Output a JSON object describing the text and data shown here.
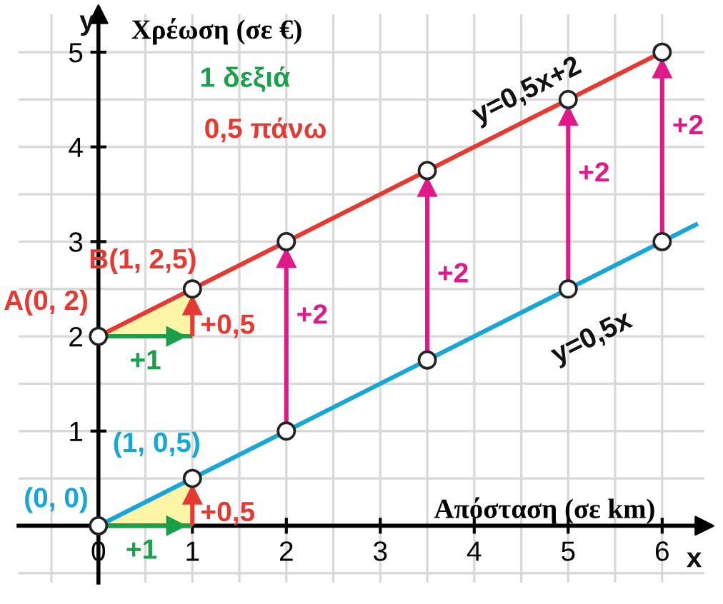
{
  "chart_data": {
    "type": "line",
    "xlabel": "Απόσταση (σε km)",
    "ylabel": "Χρέωση (σε €)",
    "xlim": [
      -0.85,
      6.45
    ],
    "ylim": [
      -0.6,
      5.4
    ],
    "xticks": [
      {
        "value": 0,
        "label": "0"
      },
      1,
      2,
      3,
      4,
      5,
      6,
      {
        "value": -0.5,
        "label": null
      },
      {
        "value": 0.5,
        "label": null
      },
      {
        "value": 1.5,
        "label": null
      },
      {
        "value": 2.5,
        "label": null
      },
      {
        "value": 3.5,
        "label": null
      },
      {
        "value": 4.5,
        "label": null
      },
      {
        "value": 5.5,
        "label": null
      }
    ],
    "yticks": [
      1,
      2,
      3,
      4,
      5,
      {
        "value": -0.5,
        "label": null
      },
      {
        "value": 0.5,
        "label": null
      },
      {
        "value": 1.5,
        "label": null
      },
      {
        "value": 2.5,
        "label": null
      },
      {
        "value": 3.5,
        "label": null
      },
      {
        "value": 4.5,
        "label": null
      }
    ],
    "grid": true,
    "series": [
      {
        "color": "#e53a32",
        "x": [
          0,
          1,
          2,
          3.5,
          5,
          6
        ],
        "values": [
          2,
          2.5,
          3,
          3.75,
          4.5,
          5
        ]
      },
      {
        "color": "#17a6d6",
        "x": [
          0,
          1,
          2,
          3.5,
          5,
          6,
          6.38
        ],
        "values": [
          0,
          0.5,
          1,
          1.75,
          2.5,
          3,
          3.19
        ]
      },
      {
        "color": "#1aa04b",
        "x": [
          0,
          1
        ],
        "values": [
          2,
          2
        ]
      },
      {
        "color": "#1aa04b",
        "x": [
          0,
          1
        ],
        "values": [
          0,
          0
        ]
      },
      {
        "color": "#e53a32",
        "x": [
          1,
          1
        ],
        "values": [
          2,
          2.5
        ]
      },
      {
        "color": "#e53a32",
        "x": [
          1,
          1
        ],
        "values": [
          0,
          0.5
        ]
      },
      {
        "color": "#e0198a",
        "x": [
          2,
          2
        ],
        "values": [
          1,
          3
        ]
      },
      {
        "color": "#e0198a",
        "x": [
          3.5,
          3.5
        ],
        "values": [
          1.75,
          3.75
        ]
      },
      {
        "color": "#e0198a",
        "x": [
          5,
          5
        ],
        "values": [
          2.5,
          4.5
        ]
      },
      {
        "color": "#e0198a",
        "x": [
          6,
          6
        ],
        "values": [
          3,
          5
        ]
      },
      {
        "type": "scatter",
        "color": "#ffffff",
        "x": [
          0,
          1,
          2,
          3.5,
          5,
          6
        ],
        "values": [
          2,
          2.5,
          3,
          3.75,
          4.5,
          5
        ]
      },
      {
        "type": "scatter",
        "color": "#ffffff",
        "x": [
          0,
          1,
          2,
          3.5,
          5,
          6
        ],
        "values": [
          0,
          0.5,
          1,
          1.75,
          2.5,
          3
        ]
      }
    ],
    "annotations": [
      "y",
      "x",
      "1 δεξιά",
      "0,5 πάνω",
      {
        "text": "A(0, 2)",
        "x": 0,
        "y": 2
      },
      {
        "text": "B(1, 2,5)",
        "x": 1,
        "y": 2.5
      },
      {
        "text": "(1, 0,5)",
        "x": 1,
        "y": 0.5
      },
      {
        "text": "(0, 0)",
        "x": 0,
        "y": 0
      },
      {
        "text": "+0,5",
        "x": 1,
        "y": 2.25
      },
      {
        "text": "+0,5",
        "x": 1,
        "y": 0.25
      },
      {
        "text": "+1",
        "x": 0.5,
        "y": 2
      },
      {
        "text": "+1",
        "x": 0.5,
        "y": 0
      },
      {
        "text": "+2",
        "x": 2,
        "y": 2
      },
      {
        "text": "+2",
        "x": 3.5,
        "y": 2.75
      },
      {
        "text": "+2",
        "x": 5,
        "y": 3.5
      },
      {
        "text": "+2",
        "x": 6,
        "y": 4
      },
      {
        "text": "y=0,5x+2",
        "x": 4.5,
        "y": 4.25
      },
      {
        "text": "y=0,5x",
        "x": 5,
        "y": 2.5
      }
    ]
  }
}
